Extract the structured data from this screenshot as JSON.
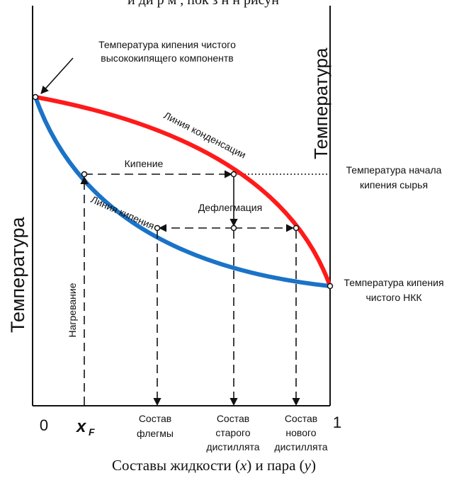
{
  "top_text": "и ди  р м    , пок з н  н  рисун",
  "axes": {
    "left_title": "Температура",
    "right_title": "Температура",
    "x_zero": "0",
    "x_one": "1",
    "xf_label": "x",
    "xf_sub": "F",
    "bottom_caption": {
      "part1": "Составы жидкости (",
      "x": "x",
      "part2": ") и пара (",
      "y": "y",
      "part3": ")"
    }
  },
  "curves": {
    "condensation": {
      "label": "Линия конденсации",
      "color": "#ff1a1a"
    },
    "boiling": {
      "label": "Линия кипения",
      "color": "#1a73c7"
    }
  },
  "labels": {
    "high_boiling_line1": "Температура кипения чистого",
    "high_boiling_line2": "высококипящего компонентв",
    "feed_start_line1": "Температура начала",
    "feed_start_line2": "кипения сырья",
    "low_boiling_line1": "Температура кипения",
    "low_boiling_line2": "чистого НКК",
    "boiling": "Кипение",
    "dephlegmation": "Дефлегмация",
    "heating": "Нагревание"
  },
  "bottom_labels": {
    "reflux": [
      "Состав",
      "флегмы"
    ],
    "old_distillate": [
      "Состав",
      "старого",
      "дистиллята"
    ],
    "new_distillate": [
      "Состав",
      "нового",
      "дистиллята"
    ]
  }
}
